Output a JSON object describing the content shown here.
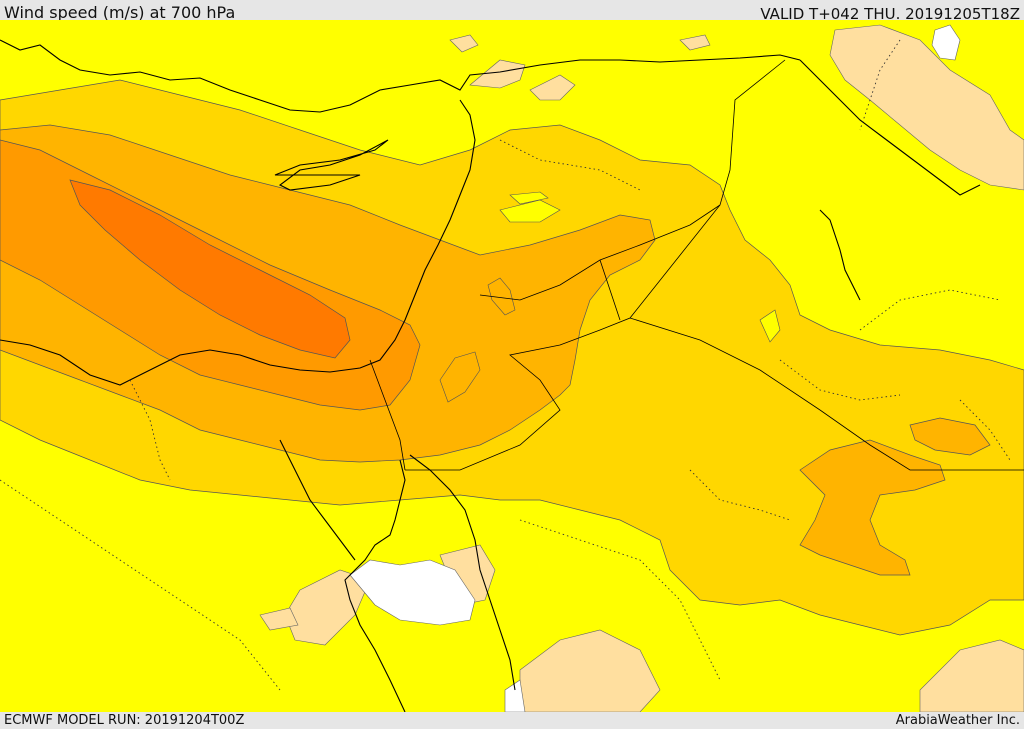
{
  "header": {
    "title": "Wind speed (m/s) at 700 hPa",
    "valid": "VALID T+042 THU. 20191205T18Z"
  },
  "footer": {
    "model_run": "ECMWF MODEL RUN: 20191204T00Z",
    "credit": "ArabiaWeather Inc."
  },
  "map": {
    "colors": {
      "band_lt5": "#ffffff",
      "band_5_10": "#ffdf9f",
      "band_10_15": "#ffff00",
      "band_15_20": "#ffd700",
      "band_20_25": "#ffb400",
      "band_25_30": "#ff9a00",
      "band_30_35": "#ff7a00",
      "coastline": "#000000",
      "contour": "#555555"
    }
  }
}
